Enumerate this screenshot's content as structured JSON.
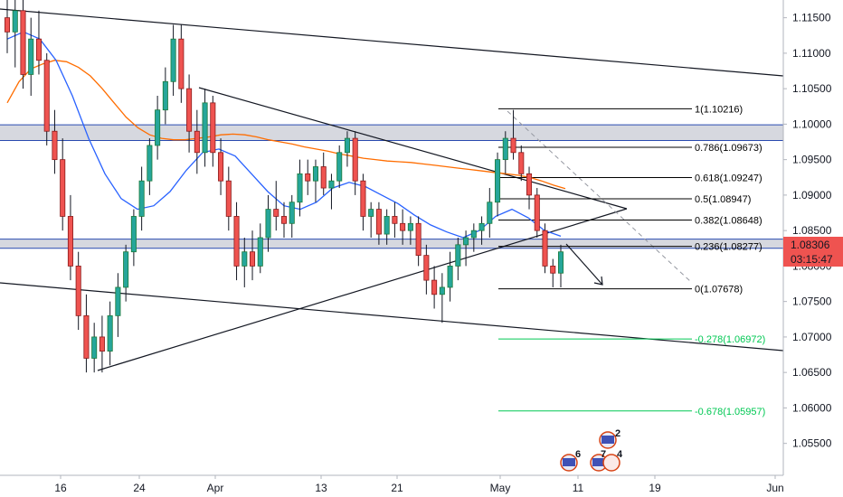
{
  "chart_data": {
    "type": "candlestick",
    "instrument_price_scale": "EURUSD daily-style price chart",
    "y_axis": {
      "ticks": [
        "1.11500",
        "1.11000",
        "1.10500",
        "1.10000",
        "1.09500",
        "1.09000",
        "1.08500",
        "1.08000",
        "1.07500",
        "1.07000",
        "1.06500",
        "1.06000",
        "1.05500"
      ],
      "tick_values": [
        1.115,
        1.11,
        1.105,
        1.1,
        1.095,
        1.09,
        1.085,
        1.08,
        1.075,
        1.07,
        1.065,
        1.06,
        1.055
      ],
      "range": [
        1.0505,
        1.1175
      ]
    },
    "x_axis": {
      "ticks": [
        "16",
        "24",
        "Apr",
        "13",
        "21",
        "May",
        "11",
        "19",
        "Jun"
      ]
    },
    "last_price": {
      "price": "1.08306",
      "countdown": "03:15:47",
      "color": "#ef5350"
    },
    "fibonacci": {
      "levels": [
        {
          "label": "1(1.10216)",
          "value": 1.10216,
          "color": "#000000"
        },
        {
          "label": "0.786(1.09673)",
          "value": 1.09673,
          "color": "#000000"
        },
        {
          "label": "0.618(1.09247)",
          "value": 1.09247,
          "color": "#000000"
        },
        {
          "label": "0.5(1.08947)",
          "value": 1.08947,
          "color": "#000000"
        },
        {
          "label": "0.382(1.08648)",
          "value": 1.08648,
          "color": "#000000"
        },
        {
          "label": "0.236(1.08277)",
          "value": 1.08277,
          "color": "#000000"
        },
        {
          "label": "0(1.07678)",
          "value": 1.07678,
          "color": "#000000"
        },
        {
          "label": "-0.278(1.06972)",
          "value": 1.06972,
          "color": "#00c853"
        },
        {
          "label": "-0.678(1.05957)",
          "value": 1.05957,
          "color": "#00c853"
        }
      ]
    },
    "zones": [
      {
        "from": 1.0977,
        "to": 1.0999,
        "color": "#d1d4dc",
        "border": "#2a4bb0"
      },
      {
        "from": 1.0825,
        "to": 1.0838,
        "color": "#d1d4dc",
        "border": "#2a4bb0"
      }
    ],
    "series": [
      {
        "name": "",
        "color": "#ff6d00",
        "values": [
          1.103,
          1.106,
          1.1078,
          1.1085,
          1.109,
          1.1088,
          1.108,
          1.1068,
          1.105,
          1.103,
          1.101,
          1.0995,
          1.0985,
          1.098,
          1.0978,
          1.0978,
          1.098,
          1.0982,
          1.0985,
          1.0986,
          1.0985,
          1.0982,
          1.0978,
          1.0975,
          1.0972,
          1.0968,
          1.0965,
          1.0962,
          1.0958,
          1.0955,
          1.0952,
          1.095,
          1.0948,
          1.0947,
          1.0946,
          1.0944,
          1.0942,
          1.094,
          1.0938,
          1.0936,
          1.0934,
          1.0932,
          1.093,
          1.0928,
          1.0925,
          1.092,
          1.0914,
          1.0909
        ]
      },
      {
        "name": "",
        "color": "#2962ff",
        "values": [
          1.112,
          1.113,
          1.112,
          1.109,
          1.104,
          1.098,
          1.093,
          1.0895,
          1.088,
          1.0885,
          1.0905,
          1.0935,
          1.096,
          1.0965,
          1.0955,
          1.093,
          1.0905,
          1.0885,
          1.088,
          1.089,
          1.091,
          1.0918,
          1.0912,
          1.09,
          1.0888,
          1.0872,
          1.0858,
          1.0848,
          1.084,
          1.085,
          1.087,
          1.088,
          1.0868,
          1.085,
          1.0842
        ]
      }
    ],
    "candles": [
      [
        1.115,
        1.12,
        1.11,
        1.113
      ],
      [
        1.113,
        1.119,
        1.108,
        1.116
      ],
      [
        1.116,
        1.119,
        1.105,
        1.107
      ],
      [
        1.107,
        1.115,
        1.104,
        1.112
      ],
      [
        1.112,
        1.116,
        1.107,
        1.109
      ],
      [
        1.109,
        1.11,
        1.097,
        1.099
      ],
      [
        1.099,
        1.102,
        1.093,
        1.095
      ],
      [
        1.095,
        1.098,
        1.085,
        1.087
      ],
      [
        1.087,
        1.09,
        1.078,
        1.08
      ],
      [
        1.08,
        1.082,
        1.071,
        1.073
      ],
      [
        1.073,
        1.076,
        1.065,
        1.067
      ],
      [
        1.067,
        1.072,
        1.065,
        1.07
      ],
      [
        1.07,
        1.073,
        1.065,
        1.068
      ],
      [
        1.068,
        1.075,
        1.066,
        1.073
      ],
      [
        1.073,
        1.079,
        1.07,
        1.077
      ],
      [
        1.077,
        1.083,
        1.075,
        1.082
      ],
      [
        1.082,
        1.088,
        1.08,
        1.087
      ],
      [
        1.087,
        1.094,
        1.085,
        1.092
      ],
      [
        1.092,
        1.098,
        1.09,
        1.097
      ],
      [
        1.097,
        1.104,
        1.095,
        1.102
      ],
      [
        1.102,
        1.108,
        1.1,
        1.106
      ],
      [
        1.106,
        1.114,
        1.104,
        1.112
      ],
      [
        1.112,
        1.114,
        1.103,
        1.105
      ],
      [
        1.105,
        1.107,
        1.096,
        1.099
      ],
      [
        1.099,
        1.102,
        1.093,
        1.096
      ],
      [
        1.096,
        1.105,
        1.094,
        1.103
      ],
      [
        1.103,
        1.104,
        1.094,
        1.096
      ],
      [
        1.096,
        1.098,
        1.09,
        1.092
      ],
      [
        1.092,
        1.094,
        1.085,
        1.087
      ],
      [
        1.087,
        1.089,
        1.078,
        1.08
      ],
      [
        1.08,
        1.084,
        1.077,
        1.082
      ],
      [
        1.082,
        1.085,
        1.078,
        1.08
      ],
      [
        1.08,
        1.086,
        1.079,
        1.084
      ],
      [
        1.084,
        1.09,
        1.082,
        1.088
      ],
      [
        1.088,
        1.092,
        1.085,
        1.087
      ],
      [
        1.087,
        1.089,
        1.084,
        1.086
      ],
      [
        1.086,
        1.09,
        1.084,
        1.089
      ],
      [
        1.089,
        1.095,
        1.087,
        1.093
      ],
      [
        1.093,
        1.095,
        1.09,
        1.092
      ],
      [
        1.092,
        1.095,
        1.089,
        1.094
      ],
      [
        1.094,
        1.096,
        1.09,
        1.091
      ],
      [
        1.091,
        1.093,
        1.088,
        1.092
      ],
      [
        1.092,
        1.097,
        1.091,
        1.096
      ],
      [
        1.096,
        1.099,
        1.094,
        1.098
      ],
      [
        1.098,
        1.099,
        1.09,
        1.092
      ],
      [
        1.092,
        1.093,
        1.085,
        1.087
      ],
      [
        1.087,
        1.089,
        1.084,
        1.088
      ],
      [
        1.088,
        1.089,
        1.083,
        1.0845
      ],
      [
        1.0845,
        1.088,
        1.083,
        1.087
      ],
      [
        1.087,
        1.089,
        1.084,
        1.086
      ],
      [
        1.086,
        1.088,
        1.083,
        1.085
      ],
      [
        1.085,
        1.087,
        1.083,
        1.086
      ],
      [
        1.086,
        1.087,
        1.08,
        1.0815
      ],
      [
        1.0815,
        1.083,
        1.076,
        1.078
      ],
      [
        1.078,
        1.08,
        1.074,
        1.076
      ],
      [
        1.076,
        1.079,
        1.072,
        1.077
      ],
      [
        1.077,
        1.082,
        1.075,
        1.08
      ],
      [
        1.08,
        1.084,
        1.078,
        1.083
      ],
      [
        1.083,
        1.085,
        1.08,
        1.084
      ],
      [
        1.084,
        1.086,
        1.082,
        1.085
      ],
      [
        1.085,
        1.087,
        1.083,
        1.086
      ],
      [
        1.086,
        1.091,
        1.084,
        1.089
      ],
      [
        1.089,
        1.096,
        1.087,
        1.095
      ],
      [
        1.095,
        1.099,
        1.093,
        1.098
      ],
      [
        1.098,
        1.102,
        1.095,
        1.096
      ],
      [
        1.096,
        1.097,
        1.092,
        1.093
      ],
      [
        1.093,
        1.094,
        1.088,
        1.09
      ],
      [
        1.09,
        1.091,
        1.084,
        1.085
      ],
      [
        1.085,
        1.086,
        1.079,
        1.08
      ],
      [
        1.08,
        1.081,
        1.077,
        1.079
      ],
      [
        1.079,
        1.083,
        1.077,
        1.082
      ]
    ]
  }
}
